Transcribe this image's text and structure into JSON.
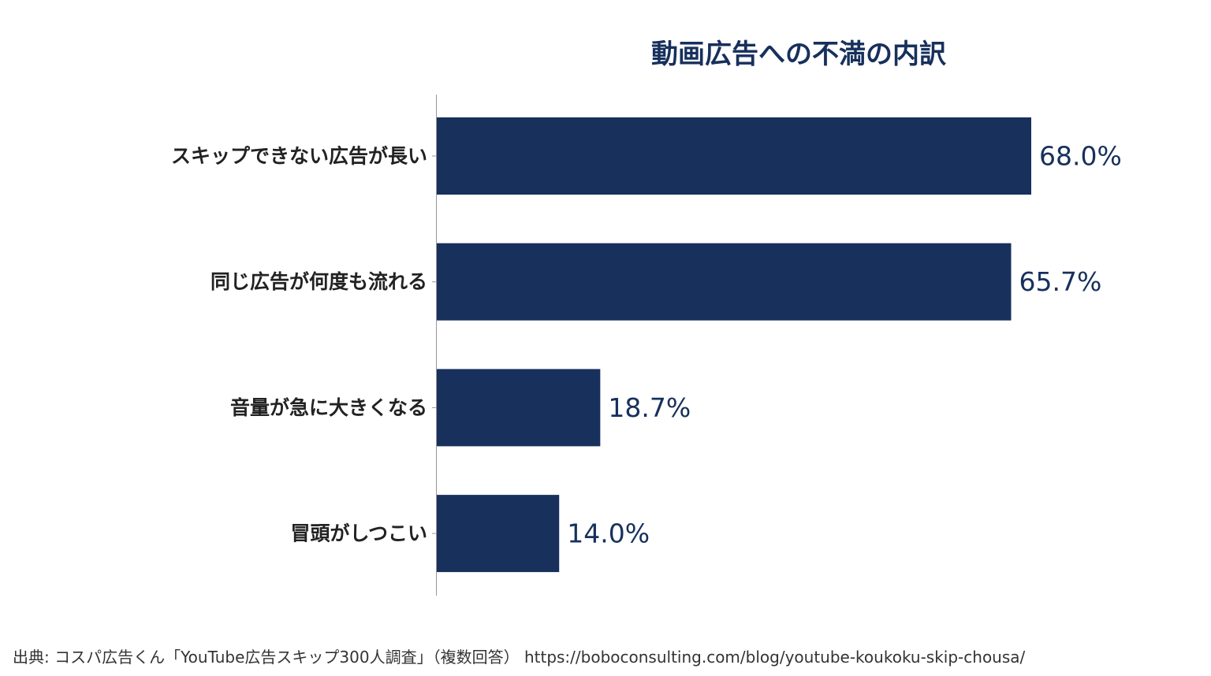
{
  "chart_data": {
    "type": "bar",
    "orientation": "horizontal",
    "title": "動画広告への不満の内訳",
    "categories": [
      "スキップできない広告が長い",
      "同じ広告が何度も流れる",
      "音量が急に大きくなる",
      "冒頭がしつこい"
    ],
    "values": [
      68.0,
      65.7,
      18.7,
      14.0
    ],
    "value_labels": [
      "68.0%",
      "65.7%",
      "18.7%",
      "14.0%"
    ],
    "xlim": [
      0,
      100
    ],
    "grid": false,
    "legend": "none",
    "bar_color": "#17305c",
    "axis_color": "#999999"
  },
  "source": "出典: コスパ広告くん「YouTube広告スキップ300人調査」（複数回答） https://boboconsulting.com/blog/youtube-koukoku-skip-chousa/"
}
